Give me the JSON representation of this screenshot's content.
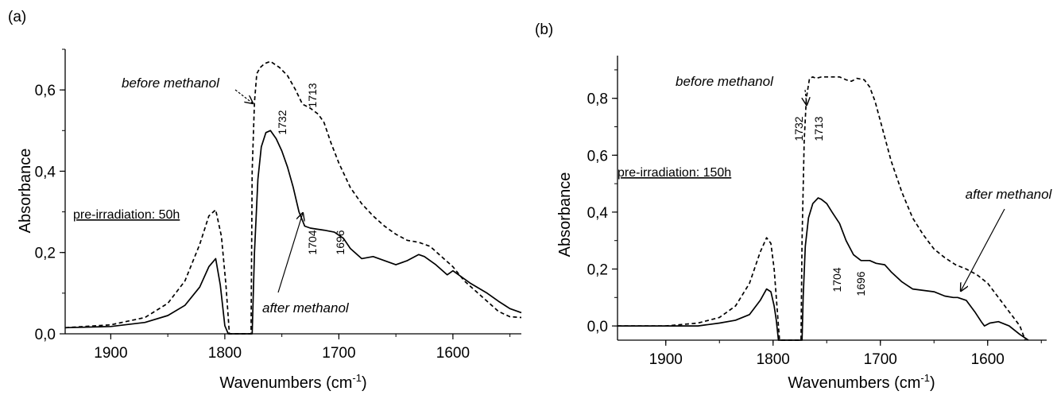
{
  "chart_data": [
    {
      "type": "line",
      "panel_label": "(a)",
      "xlabel": "Wavenumbers (cm-1)",
      "ylabel": "Absorbance",
      "xlim": [
        1940,
        1540
      ],
      "ylim": [
        0,
        0.7
      ],
      "x_reversed": true,
      "xticks": [
        "1900",
        "1800",
        "1700",
        "1600"
      ],
      "yticks": [
        "0,0",
        "0,2",
        "0,4",
        "0,6"
      ],
      "condition_label": "pre-irradiation: 50h",
      "series": [
        {
          "name": "before methanol",
          "style": "dashed",
          "x": [
            1940,
            1900,
            1870,
            1850,
            1835,
            1822,
            1814,
            1808,
            1803,
            1799,
            1797,
            1796,
            1777,
            1776,
            1774,
            1772,
            1769,
            1765,
            1760,
            1752,
            1745,
            1738,
            1732,
            1725,
            1718,
            1713,
            1707,
            1700,
            1690,
            1680,
            1670,
            1660,
            1650,
            1640,
            1630,
            1620,
            1610,
            1600,
            1590,
            1580,
            1570,
            1560,
            1550,
            1540
          ],
          "y": [
            0.015,
            0.022,
            0.04,
            0.075,
            0.13,
            0.22,
            0.29,
            0.305,
            0.24,
            0.12,
            0.04,
            0.0,
            0.0,
            0.4,
            0.57,
            0.64,
            0.655,
            0.665,
            0.67,
            0.655,
            0.635,
            0.6,
            0.565,
            0.555,
            0.54,
            0.52,
            0.47,
            0.42,
            0.36,
            0.32,
            0.29,
            0.265,
            0.245,
            0.23,
            0.225,
            0.215,
            0.19,
            0.165,
            0.13,
            0.105,
            0.08,
            0.055,
            0.042,
            0.04
          ]
        },
        {
          "name": "after methanol",
          "style": "solid",
          "x": [
            1940,
            1900,
            1870,
            1850,
            1835,
            1822,
            1814,
            1808,
            1804,
            1800,
            1797,
            1776,
            1774,
            1771,
            1768,
            1764,
            1760,
            1755,
            1750,
            1745,
            1740,
            1735,
            1730,
            1725,
            1720,
            1713,
            1704,
            1696,
            1690,
            1680,
            1670,
            1660,
            1650,
            1640,
            1630,
            1625,
            1615,
            1605,
            1600,
            1595,
            1585,
            1570,
            1560,
            1550,
            1540
          ],
          "y": [
            0.015,
            0.018,
            0.028,
            0.045,
            0.07,
            0.115,
            0.165,
            0.185,
            0.12,
            0.02,
            0.0,
            0.0,
            0.2,
            0.38,
            0.46,
            0.495,
            0.5,
            0.48,
            0.45,
            0.41,
            0.36,
            0.3,
            0.265,
            0.26,
            0.258,
            0.255,
            0.25,
            0.235,
            0.21,
            0.185,
            0.19,
            0.18,
            0.17,
            0.18,
            0.195,
            0.19,
            0.17,
            0.145,
            0.155,
            0.145,
            0.125,
            0.1,
            0.08,
            0.062,
            0.052
          ]
        }
      ],
      "annotations": {
        "before": "before methanol",
        "after": "after methanol",
        "p1": "1732",
        "p2": "1713",
        "p3": "1704",
        "p4": "1696"
      }
    },
    {
      "type": "line",
      "panel_label": "(b)",
      "xlabel": "Wavenumbers (cm-1)",
      "ylabel": "Absorbance",
      "xlim": [
        1945,
        1545
      ],
      "ylim": [
        -0.05,
        0.95
      ],
      "x_reversed": true,
      "xticks": [
        "1900",
        "1800",
        "1700",
        "1600"
      ],
      "yticks": [
        "0,0",
        "0,2",
        "0,4",
        "0,6",
        "0,8"
      ],
      "condition_label": "pre-irradiation: 150h",
      "series": [
        {
          "name": "before methanol",
          "style": "dashed",
          "x": [
            1945,
            1900,
            1870,
            1850,
            1835,
            1822,
            1812,
            1806,
            1802,
            1799,
            1797,
            1795,
            1794,
            1774,
            1773,
            1771,
            1769,
            1766,
            1763,
            1760,
            1755,
            1745,
            1738,
            1732,
            1727,
            1722,
            1715,
            1710,
            1705,
            1700,
            1690,
            1680,
            1670,
            1660,
            1650,
            1640,
            1630,
            1620,
            1610,
            1600,
            1590,
            1580,
            1570,
            1565
          ],
          "y": [
            0.0,
            0.0,
            0.01,
            0.03,
            0.07,
            0.15,
            0.26,
            0.31,
            0.29,
            0.2,
            0.1,
            0.0,
            -0.05,
            -0.05,
            0.3,
            0.65,
            0.8,
            0.87,
            0.875,
            0.87,
            0.875,
            0.875,
            0.875,
            0.865,
            0.86,
            0.87,
            0.865,
            0.84,
            0.79,
            0.72,
            0.58,
            0.47,
            0.38,
            0.32,
            0.27,
            0.24,
            0.215,
            0.2,
            0.18,
            0.15,
            0.1,
            0.05,
            0.0,
            -0.05
          ]
        },
        {
          "name": "after methanol",
          "style": "solid",
          "x": [
            1945,
            1900,
            1870,
            1850,
            1835,
            1822,
            1812,
            1806,
            1802,
            1799,
            1797,
            1795,
            1773,
            1772,
            1770,
            1767,
            1763,
            1758,
            1755,
            1750,
            1745,
            1738,
            1732,
            1725,
            1718,
            1710,
            1704,
            1696,
            1690,
            1680,
            1670,
            1660,
            1650,
            1640,
            1632,
            1628,
            1620,
            1612,
            1606,
            1603,
            1598,
            1590,
            1580,
            1570,
            1562
          ],
          "y": [
            0.0,
            0.0,
            0.0,
            0.01,
            0.02,
            0.04,
            0.09,
            0.13,
            0.12,
            0.07,
            0.02,
            -0.05,
            -0.05,
            0.1,
            0.28,
            0.38,
            0.43,
            0.45,
            0.445,
            0.43,
            0.4,
            0.36,
            0.3,
            0.25,
            0.23,
            0.23,
            0.22,
            0.215,
            0.19,
            0.155,
            0.13,
            0.125,
            0.12,
            0.105,
            0.1,
            0.1,
            0.09,
            0.05,
            0.015,
            0.0,
            0.01,
            0.015,
            0.0,
            -0.03,
            -0.05
          ]
        }
      ],
      "annotations": {
        "before": "before methanol",
        "after": "after methanol",
        "p1": "1732",
        "p2": "1713",
        "p3": "1704",
        "p4": "1696"
      }
    }
  ]
}
